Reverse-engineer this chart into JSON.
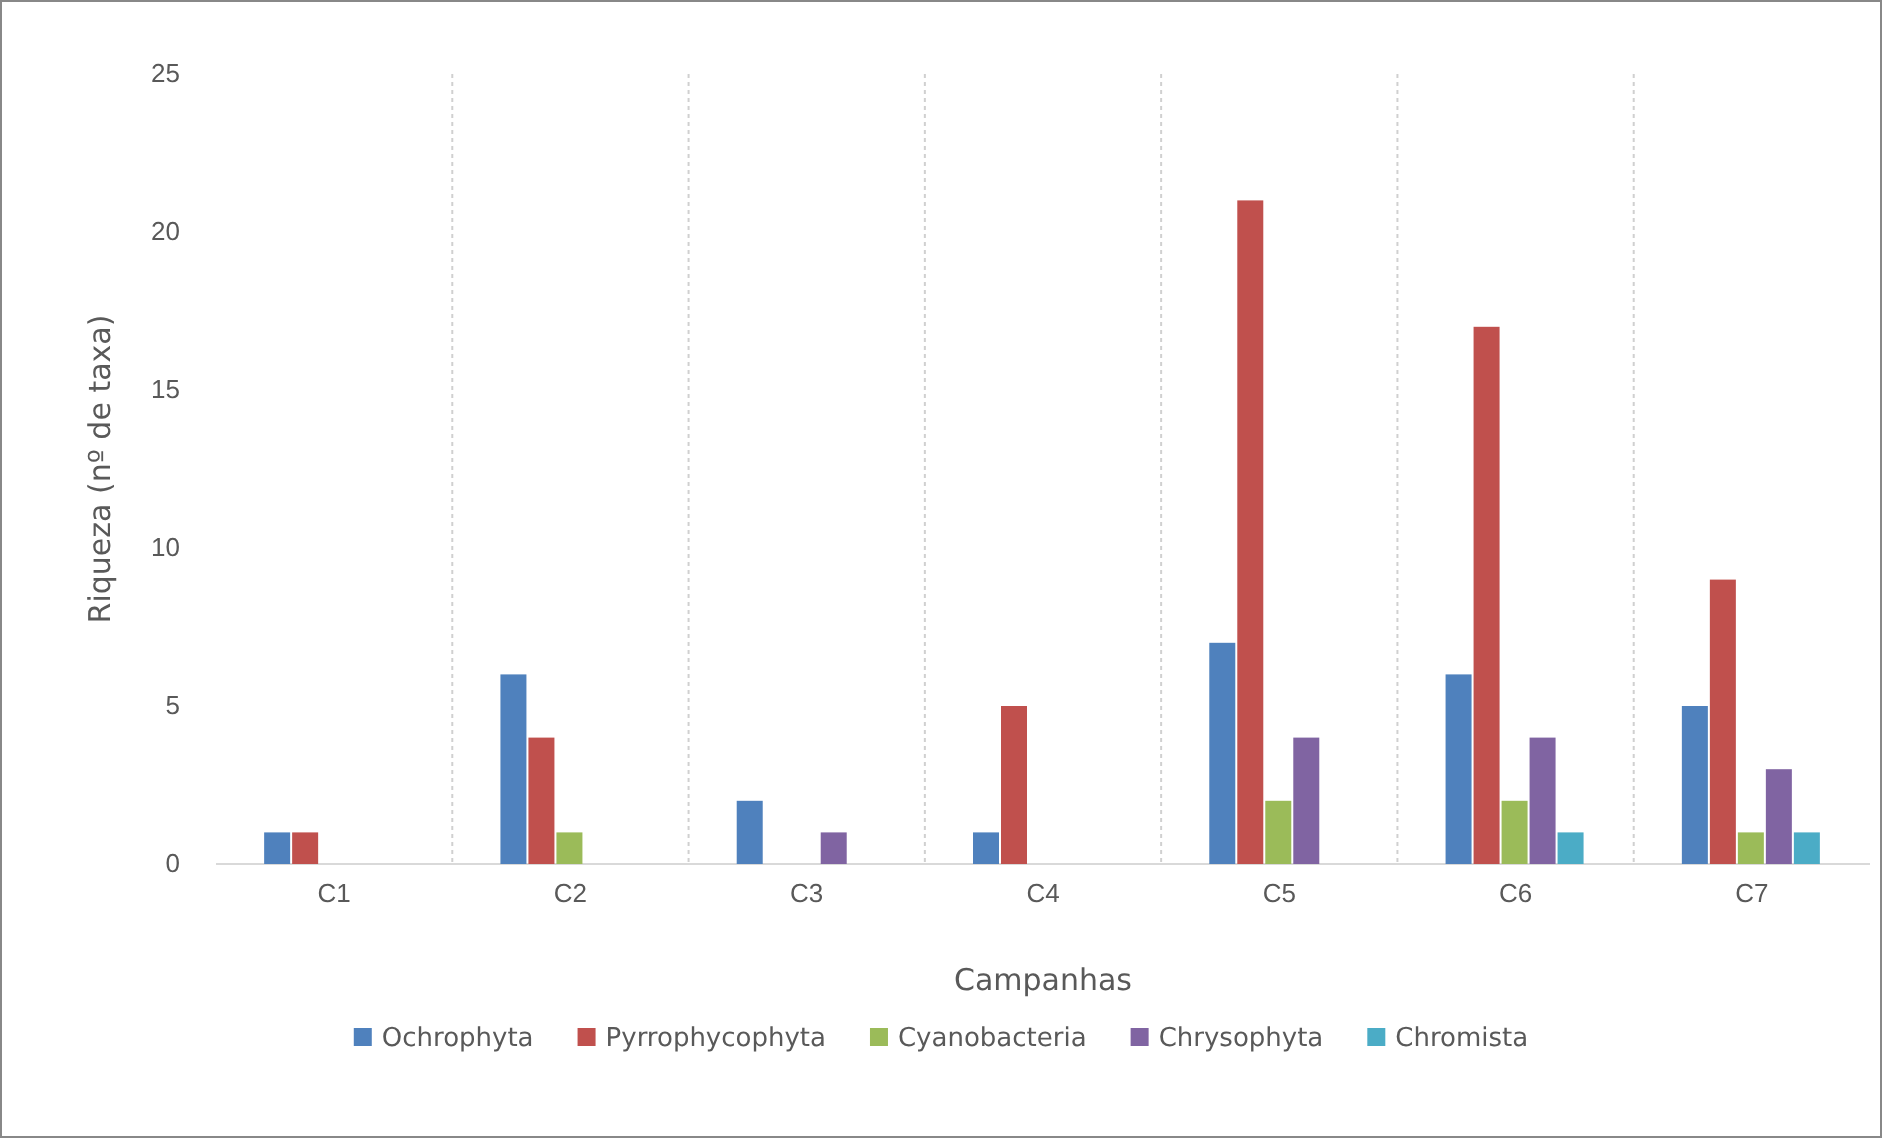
{
  "chart_data": {
    "type": "bar",
    "xlabel": "Campanhas",
    "ylabel": "Riqueza (nº de taxa)",
    "categories": [
      "C1",
      "C2",
      "C3",
      "C4",
      "C5",
      "C6",
      "C7"
    ],
    "series": [
      {
        "name": "Ochrophyta",
        "color": "#4f81bd",
        "values": [
          1,
          6,
          2,
          1,
          7,
          6,
          5
        ]
      },
      {
        "name": "Pyrrophycophyta",
        "color": "#c0504d",
        "values": [
          1,
          4,
          0,
          5,
          21,
          17,
          9
        ]
      },
      {
        "name": "Cyanobacteria",
        "color": "#9bbb59",
        "values": [
          0,
          1,
          0,
          0,
          2,
          2,
          1
        ]
      },
      {
        "name": "Chrysophyta",
        "color": "#8064a2",
        "values": [
          0,
          0,
          1,
          0,
          4,
          4,
          3
        ]
      },
      {
        "name": "Chromista",
        "color": "#4bacc6",
        "values": [
          0,
          0,
          0,
          0,
          0,
          1,
          1
        ]
      }
    ],
    "ylim": [
      0,
      25
    ],
    "yticks": [
      0,
      5,
      10,
      15,
      20,
      25
    ],
    "grid": "x",
    "legend": "bottom"
  }
}
